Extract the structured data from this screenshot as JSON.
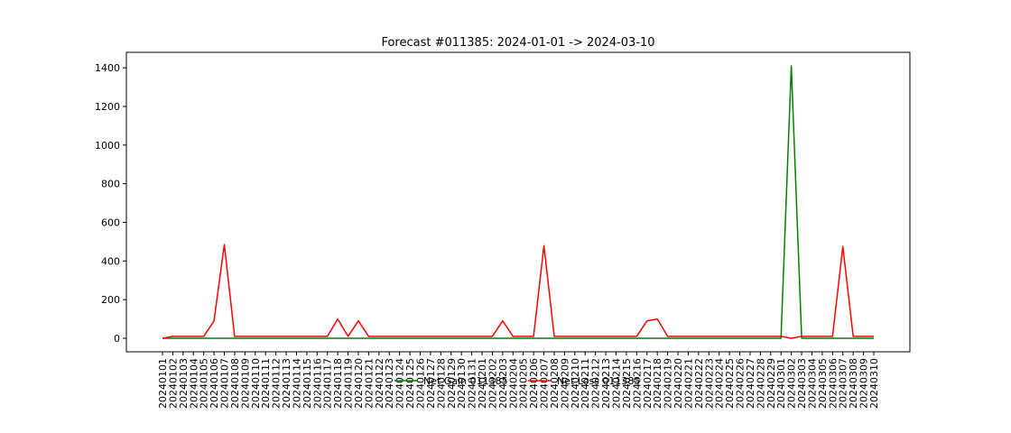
{
  "chart_data": {
    "type": "line",
    "title": "Forecast #011385: 2024-01-01 -> 2024-03-10",
    "xlabel": "",
    "ylabel": "",
    "ylim": [
      -70,
      1480
    ],
    "yticks": [
      0,
      200,
      400,
      600,
      800,
      1000,
      1200,
      1400
    ],
    "x_tick_rotation": 90,
    "grid": false,
    "legend_position": "lower center",
    "legend_columns": 2,
    "categories": [
      "20240101",
      "20240102",
      "20240103",
      "20240104",
      "20240105",
      "20240106",
      "20240107",
      "20240108",
      "20240109",
      "20240110",
      "20240111",
      "20240112",
      "20240113",
      "20240114",
      "20240115",
      "20240116",
      "20240117",
      "20240118",
      "20240119",
      "20240120",
      "20240121",
      "20240122",
      "20240123",
      "20240124",
      "20240125",
      "20240126",
      "20240127",
      "20240128",
      "20240129",
      "20240130",
      "20240131",
      "20240201",
      "20240202",
      "20240203",
      "20240204",
      "20240205",
      "20240206",
      "20240207",
      "20240208",
      "20240209",
      "20240210",
      "20240211",
      "20240212",
      "20240213",
      "20240214",
      "20240215",
      "20240216",
      "20240217",
      "20240218",
      "20240219",
      "20240220",
      "20240221",
      "20240222",
      "20240223",
      "20240224",
      "20240225",
      "20240226",
      "20240227",
      "20240228",
      "20240229",
      "20240301",
      "20240302",
      "20240303",
      "20240304",
      "20240305",
      "20240306",
      "20240307",
      "20240308",
      "20240309",
      "20240310"
    ],
    "series": [
      {
        "name": "Net Gain 011385",
        "color": "#008000",
        "values": [
          0,
          0,
          0,
          0,
          0,
          0,
          0,
          0,
          0,
          0,
          0,
          0,
          0,
          0,
          0,
          0,
          0,
          0,
          0,
          0,
          0,
          0,
          0,
          0,
          0,
          0,
          0,
          0,
          0,
          0,
          0,
          0,
          0,
          0,
          0,
          0,
          0,
          0,
          0,
          0,
          0,
          0,
          0,
          0,
          0,
          0,
          0,
          0,
          0,
          0,
          0,
          0,
          0,
          0,
          0,
          0,
          0,
          0,
          0,
          0,
          0,
          1410,
          0,
          0,
          0,
          0,
          0,
          0,
          0,
          0
        ]
      },
      {
        "name": "Net Loss 011385",
        "color": "#ff0000",
        "values": [
          0,
          10,
          10,
          10,
          10,
          90,
          485,
          10,
          10,
          10,
          10,
          10,
          10,
          10,
          10,
          10,
          10,
          100,
          10,
          90,
          10,
          10,
          10,
          10,
          10,
          10,
          10,
          10,
          10,
          10,
          10,
          10,
          10,
          90,
          10,
          10,
          10,
          480,
          10,
          10,
          10,
          10,
          10,
          10,
          10,
          10,
          10,
          90,
          100,
          10,
          10,
          10,
          10,
          10,
          10,
          10,
          10,
          10,
          10,
          10,
          10,
          0,
          10,
          10,
          10,
          10,
          475,
          10,
          10,
          10
        ]
      }
    ]
  }
}
